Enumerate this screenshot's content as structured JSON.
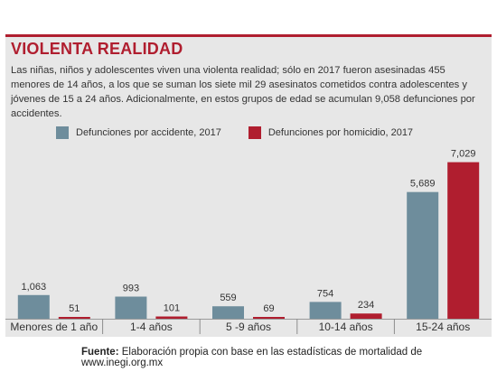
{
  "header": {
    "title": "VIOLENTA REALIDAD",
    "description": "Las niñas, niños y adolescentes viven una violenta realidad; sólo en 2017 fueron asesinadas 455 menores de 14 años, a los que se suman los siete mil 29 asesinatos cometidos contra adolescentes y jóvenes de 15 a 24 años. Adicionalmente, en estos grupos de edad se acumulan 9,058 defunciones por accidentes."
  },
  "footer": {
    "source_label": "Fuente:",
    "source_text": "Elaboración propia con base en las estadísticas de mortalidad de www.inegi.org.mx"
  },
  "colors": {
    "accent": "#b01e2f",
    "accident": "#6e8d9c",
    "homicide": "#b01e2f",
    "panel": "#e7e7e7"
  },
  "chart_data": {
    "type": "bar",
    "categories": [
      "Menores de 1 año",
      "1-4 años",
      "5 -9 años",
      "10-14 años",
      "15-24 años"
    ],
    "series": [
      {
        "name": "Defunciones por accidente, 2017",
        "values": [
          1063,
          993,
          559,
          754,
          5689
        ],
        "labels": [
          "1,063",
          "993",
          "559",
          "754",
          "5,689"
        ]
      },
      {
        "name": "Defunciones por homicidio, 2017",
        "values": [
          51,
          101,
          69,
          234,
          7029
        ],
        "labels": [
          "51",
          "101",
          "69",
          "234",
          "7,029"
        ]
      }
    ],
    "ylim": [
      0,
      7500
    ],
    "legend": "top-left",
    "grid": false
  }
}
